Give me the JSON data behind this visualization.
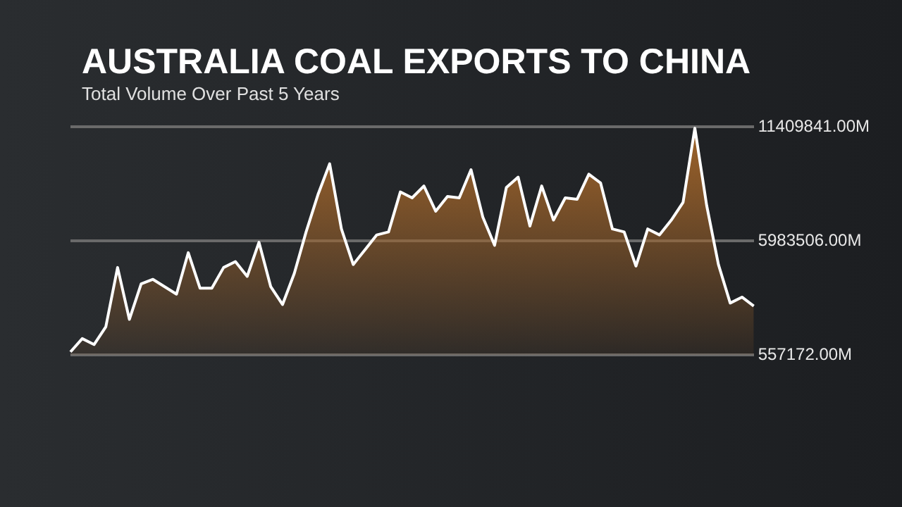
{
  "chart_data": {
    "type": "area",
    "title": "AUSTRALIA COAL EXPORTS TO CHINA",
    "subtitle": "Total Volume Over Past 5 Years",
    "categories": [
      null,
      null,
      null,
      null,
      null,
      null,
      null,
      null,
      null,
      null,
      null,
      null,
      null,
      null,
      null,
      null,
      null,
      null,
      null,
      null,
      null,
      null,
      null,
      null,
      null,
      null,
      null,
      null,
      null,
      null,
      null,
      null,
      null,
      null,
      null,
      null,
      null,
      null,
      null,
      null,
      null,
      null,
      null,
      null,
      null,
      null,
      null,
      null,
      null,
      null,
      null,
      null,
      null,
      null,
      null,
      null,
      null,
      null,
      null
    ],
    "series": [
      {
        "color": "#a0642a",
        "values": [
          698000,
          1332000,
          1050000,
          1896000,
          4715000,
          2248000,
          3940000,
          4151000,
          3799000,
          3446000,
          5420000,
          3728000,
          3728000,
          4715000,
          4997000,
          4292000,
          5913000,
          3799000,
          2953000,
          4433000,
          6406000,
          8168000,
          9648000,
          6547000,
          4856000,
          5560000,
          6265000,
          6406000,
          8309000,
          8027000,
          8591000,
          7393000,
          8097000,
          8027000,
          9366000,
          7111000,
          5772000,
          8520000,
          9014000,
          6688000,
          8591000,
          6970000,
          8027000,
          7957000,
          9155000,
          8732000,
          6547000,
          6406000,
          4785000,
          6547000,
          6265000,
          6970000,
          7816000,
          11339000,
          7675000,
          4856000,
          3023000,
          3305000,
          2883000
        ]
      }
    ],
    "ylim": [
      557172,
      11409841
    ],
    "yticks": [
      {
        "value": 557172,
        "label": "557172.00M"
      },
      {
        "value": 5983506,
        "label": "5983506.00M"
      },
      {
        "value": 11409841,
        "label": "11409841.00M"
      }
    ],
    "grid": "y",
    "legend": false,
    "marker": "none"
  }
}
